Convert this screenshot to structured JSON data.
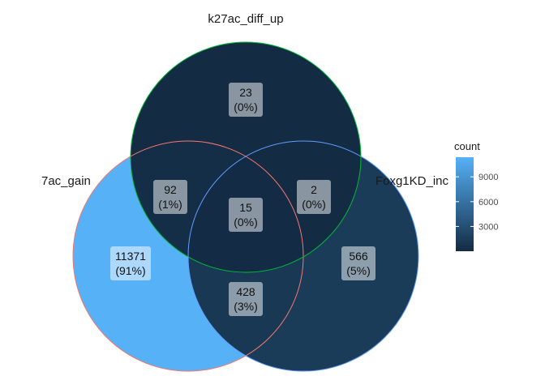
{
  "chart_data": {
    "type": "venn",
    "sets": [
      {
        "name": "7ac_gain",
        "outline_color": "#F8766D"
      },
      {
        "name": "k27ac_diff_up",
        "outline_color": "#00BA38"
      },
      {
        "name": "Foxg1KD_inc",
        "outline_color": "#619CFF"
      }
    ],
    "regions": [
      {
        "id": "A_only",
        "sets": [
          "7ac_gain"
        ],
        "count": 11371,
        "percent": "(91%)",
        "label": "11371"
      },
      {
        "id": "B_only",
        "sets": [
          "k27ac_diff_up"
        ],
        "count": 23,
        "percent": "(0%)",
        "label": "23"
      },
      {
        "id": "C_only",
        "sets": [
          "Foxg1KD_inc"
        ],
        "count": 566,
        "percent": "(5%)",
        "label": "566"
      },
      {
        "id": "AB",
        "sets": [
          "7ac_gain",
          "k27ac_diff_up"
        ],
        "count": 92,
        "percent": "(1%)",
        "label": "92"
      },
      {
        "id": "BC",
        "sets": [
          "k27ac_diff_up",
          "Foxg1KD_inc"
        ],
        "count": 2,
        "percent": "(0%)",
        "label": "2"
      },
      {
        "id": "AC",
        "sets": [
          "7ac_gain",
          "Foxg1KD_inc"
        ],
        "count": 428,
        "percent": "(3%)",
        "label": "428"
      },
      {
        "id": "ABC",
        "sets": [
          "7ac_gain",
          "k27ac_diff_up",
          "Foxg1KD_inc"
        ],
        "count": 15,
        "percent": "(0%)",
        "label": "15"
      }
    ],
    "legend": {
      "title": "count",
      "ticks": [
        "9000",
        "6000",
        "3000"
      ],
      "tick_values": [
        9000,
        6000,
        3000
      ],
      "range": [
        2,
        11371
      ],
      "low_color": "#132B43",
      "high_color": "#56B1F7",
      "placement": "right"
    }
  }
}
